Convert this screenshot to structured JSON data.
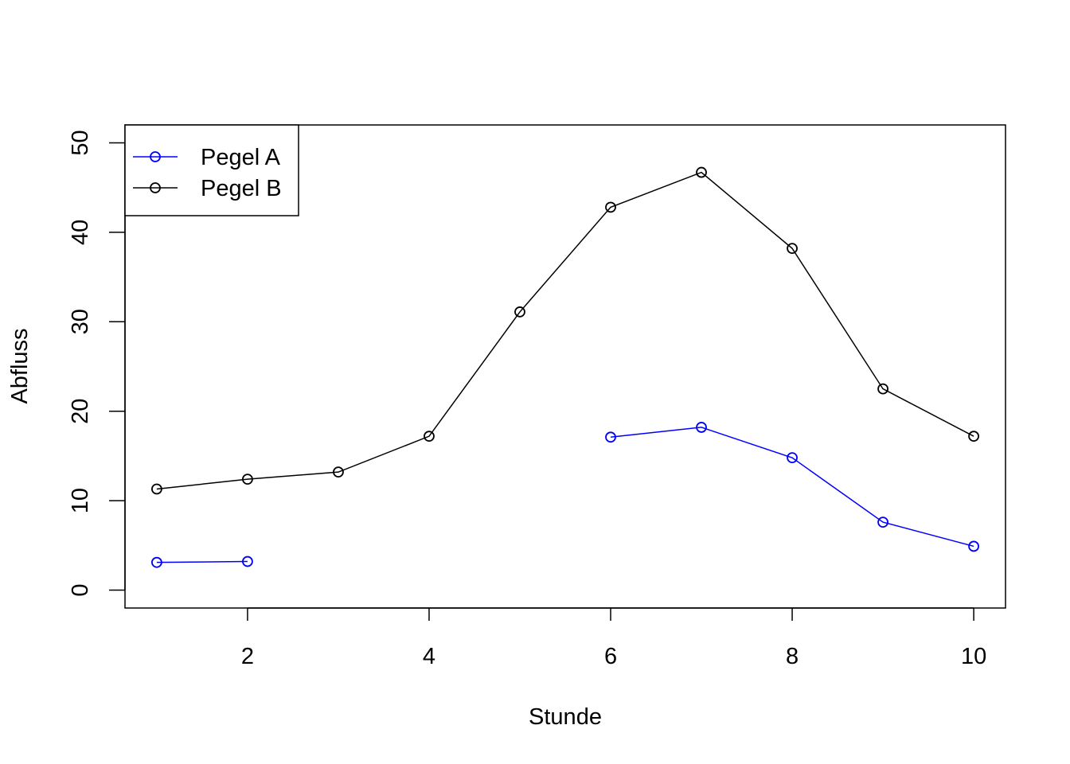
{
  "chart_data": {
    "type": "line",
    "title": "",
    "xlabel": "Stunde",
    "ylabel": "Abfluss",
    "xlim": [
      0.65,
      10.35
    ],
    "ylim": [
      -2,
      52
    ],
    "x_ticks": [
      2,
      4,
      6,
      8,
      10
    ],
    "y_ticks": [
      0,
      10,
      20,
      30,
      40,
      50
    ],
    "grid": false,
    "legend_position": "top-left",
    "x": [
      1,
      2,
      3,
      4,
      5,
      6,
      7,
      8,
      9,
      10
    ],
    "series": [
      {
        "name": "Pegel A",
        "color": "#0000ff",
        "marker": "open-circle",
        "values": [
          3.1,
          3.2,
          null,
          null,
          null,
          17.1,
          18.2,
          14.8,
          7.6,
          4.9
        ]
      },
      {
        "name": "Pegel B",
        "color": "#000000",
        "marker": "open-circle",
        "values": [
          11.3,
          12.4,
          13.2,
          17.2,
          31.1,
          42.8,
          46.7,
          38.2,
          22.5,
          17.2
        ]
      }
    ]
  }
}
